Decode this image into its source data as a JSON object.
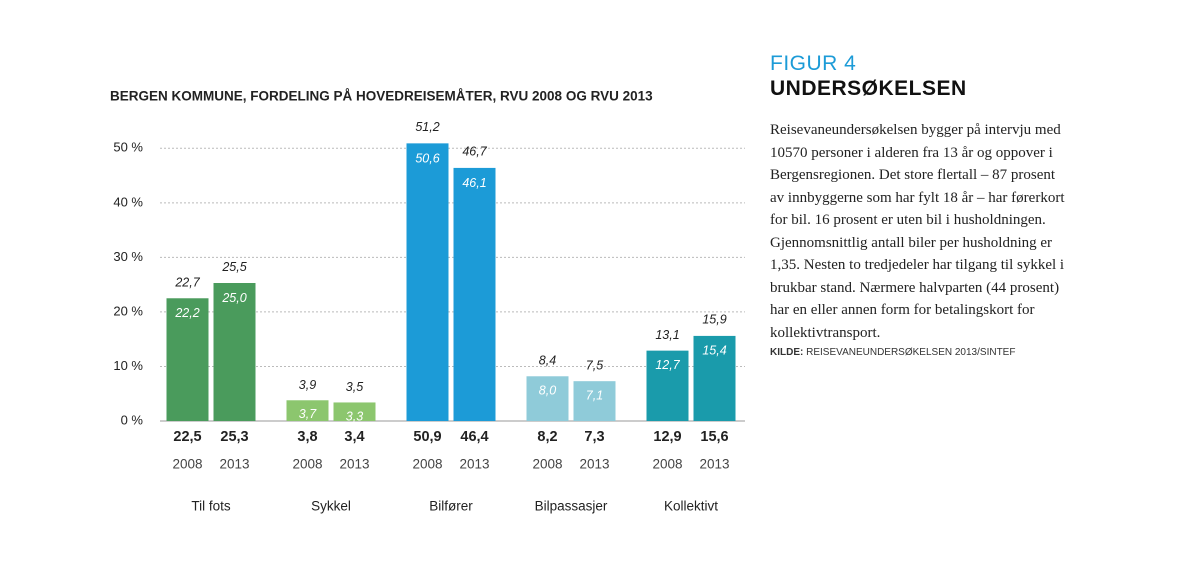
{
  "chart_data": {
    "type": "bar",
    "title": "BERGEN KOMMUNE, FORDELING PÅ HOVEDREISEMÅTER, RVU 2008 OG RVU 2013",
    "categories": [
      "Til fots",
      "Sykkel",
      "Bilfører",
      "Bilpassasjer",
      "Kollektivt"
    ],
    "colors": [
      "#4a9b5c",
      "#8cc66e",
      "#1c9bd7",
      "#8fcbd9",
      "#1a9bab"
    ],
    "series": [
      {
        "name": "2008",
        "values": [
          22.5,
          3.8,
          50.9,
          8.2,
          12.9
        ],
        "value_labels": [
          "22,5",
          "3,8",
          "50,9",
          "8,2",
          "12,9"
        ],
        "upper": [
          22.7,
          3.9,
          51.2,
          8.4,
          13.1
        ],
        "upper_labels": [
          "22,7",
          "3,9",
          "51,2",
          "8,4",
          "13,1"
        ],
        "lower": [
          22.2,
          3.7,
          50.6,
          8.0,
          12.7
        ],
        "lower_labels": [
          "22,2",
          "3,7",
          "50,6",
          "8,0",
          "12,7"
        ]
      },
      {
        "name": "2013",
        "values": [
          25.3,
          3.4,
          46.4,
          7.3,
          15.6
        ],
        "value_labels": [
          "25,3",
          "3,4",
          "46,4",
          "7,3",
          "15,6"
        ],
        "upper": [
          25.5,
          3.5,
          46.7,
          7.5,
          15.9
        ],
        "upper_labels": [
          "25,5",
          "3,5",
          "46,7",
          "7,5",
          "15,9"
        ],
        "lower": [
          25.0,
          3.3,
          46.1,
          7.1,
          15.4
        ],
        "lower_labels": [
          "25,0",
          "3,3",
          "46,1",
          "7,1",
          "15,4"
        ]
      }
    ],
    "ylim": [
      0,
      55
    ],
    "yticks": [
      {
        "value": 0,
        "label": "0 %"
      },
      {
        "value": 10,
        "label": "10 %"
      },
      {
        "value": 20,
        "label": "20 %"
      },
      {
        "value": 30,
        "label": "30 %"
      },
      {
        "value": 40,
        "label": "40 %"
      },
      {
        "value": 50,
        "label": "50 %"
      }
    ],
    "grid": true
  },
  "panel": {
    "figure": "FIGUR 4",
    "heading": "UNDERSØKELSEN",
    "body": "Reisevaneundersøkelsen bygger på intervju med 10570 personer i alderen fra 13 år og oppover i Bergensregionen. Det store flertall – 87 prosent av innbyggerne som har fylt 18 år – har førerkort for bil. 16 prosent er uten bil i husholdningen. Gjennomsnittlig antall biler per husholdning er 1,35. Nesten to tredjedeler har tilgang til sykkel i brukbar stand. Nærmere halvparten (44 prosent) har en eller annen form for betalingskort for kollektivtransport.",
    "source_label": "KILDE:",
    "source": "REISEVANEUNDERSØKELSEN 2013/SINTEF"
  }
}
